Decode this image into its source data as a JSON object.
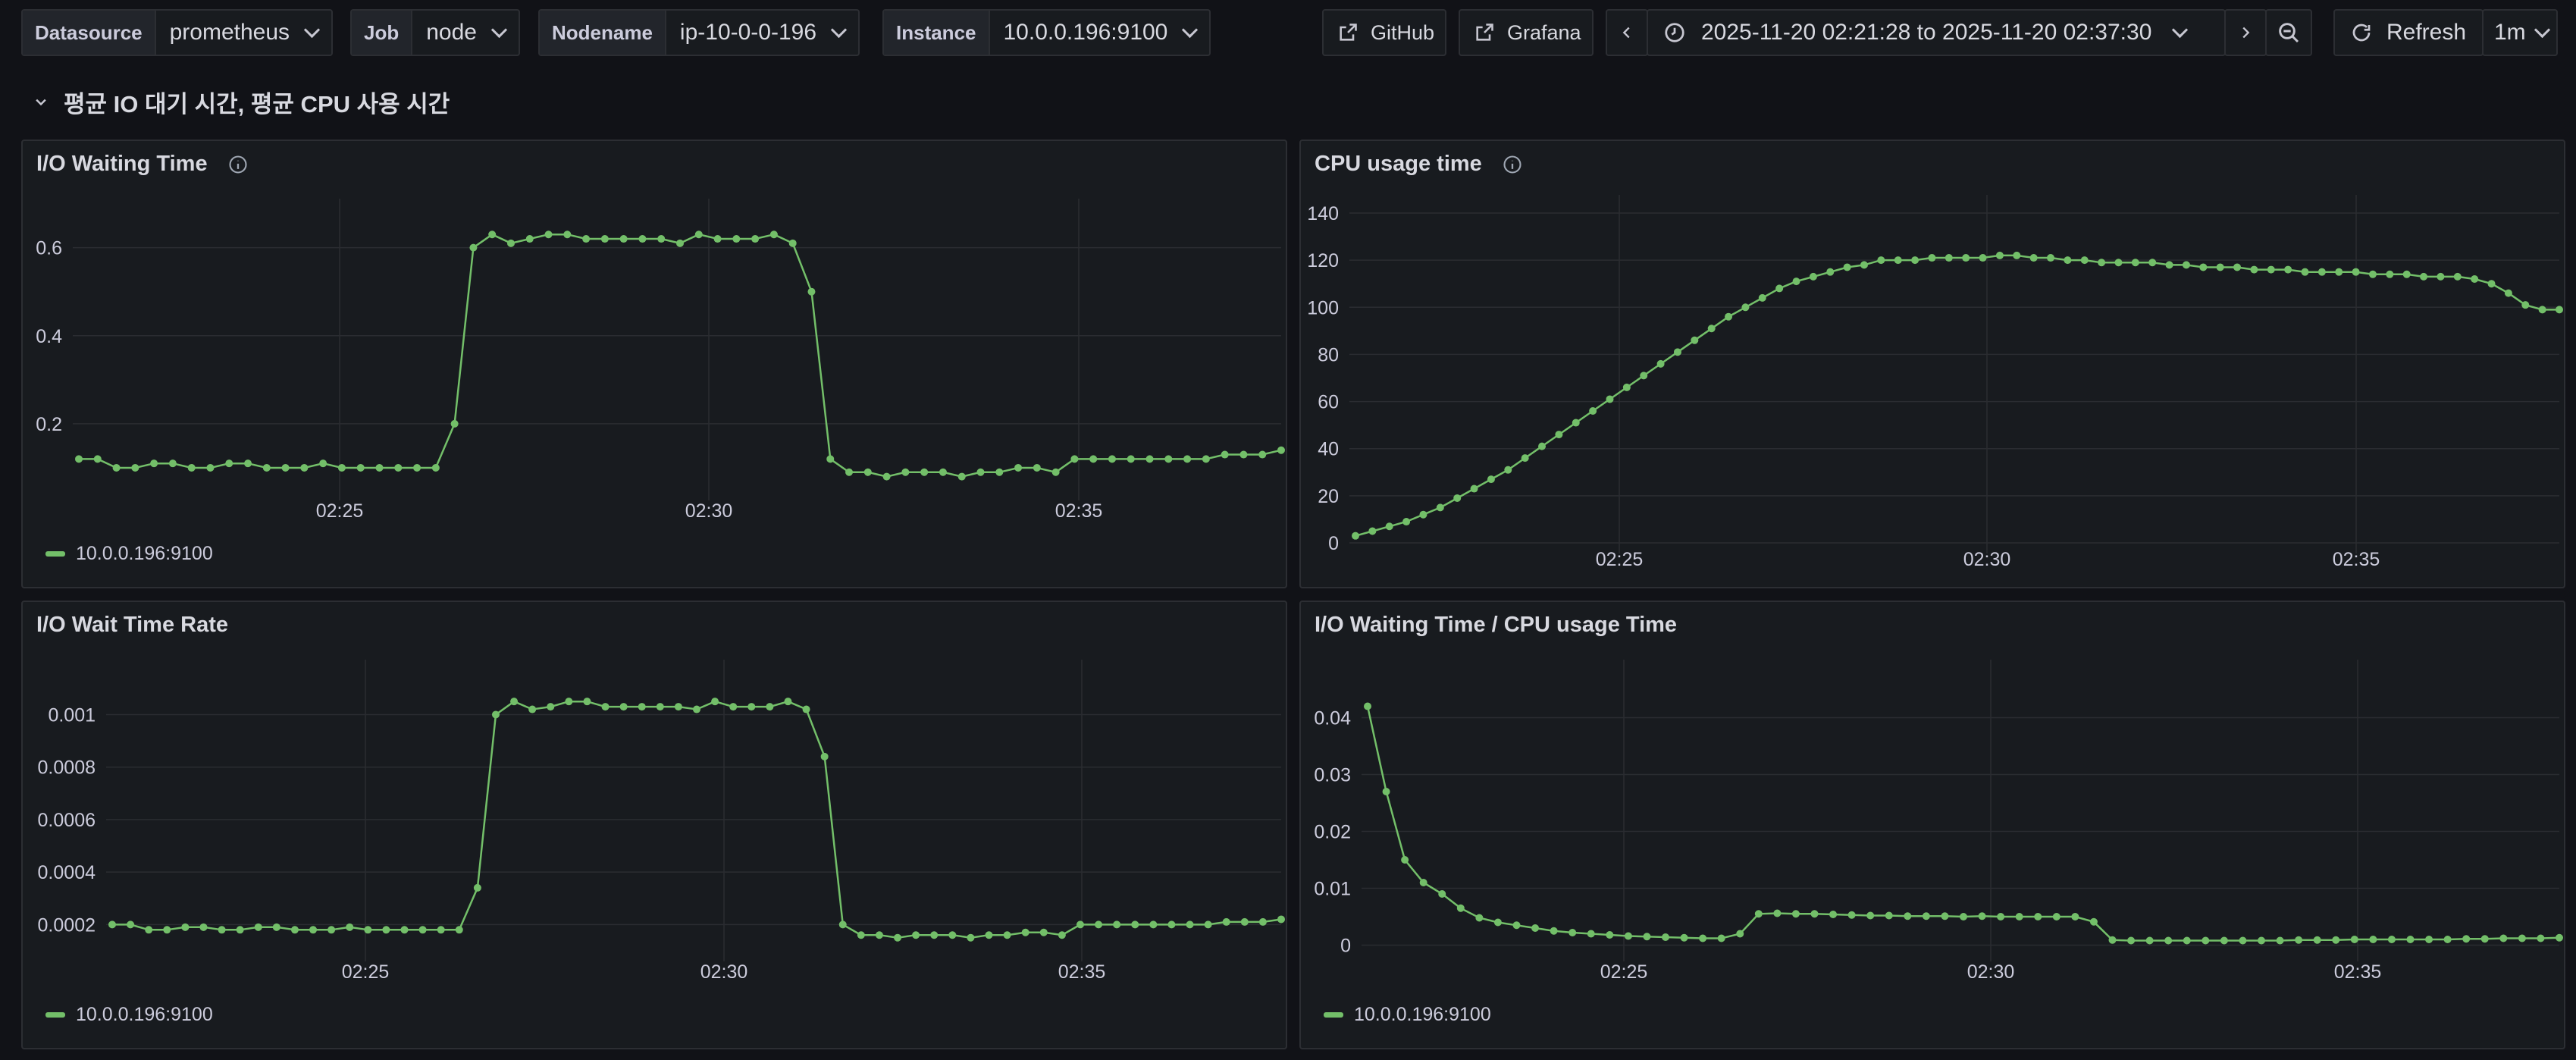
{
  "variables": [
    {
      "label": "Datasource",
      "value": "prometheus"
    },
    {
      "label": "Job",
      "value": "node"
    },
    {
      "label": "Nodename",
      "value": "ip-10-0-0-196"
    },
    {
      "label": "Instance",
      "value": "10.0.0.196:9100"
    }
  ],
  "toolbar": {
    "github_label": "GitHub",
    "grafana_label": "Grafana",
    "time_range": "2025-11-20 02:21:28 to 2025-11-20 02:37:30",
    "refresh_label": "Refresh",
    "refresh_interval": "1m"
  },
  "row_title": "평균 IO 대기 시간, 평균 CPU 사용 시간",
  "colors": {
    "series": "#73bf69",
    "background": "#111217",
    "panel": "#181b1f"
  },
  "panels": [
    {
      "title": "I/O Waiting Time",
      "has_info_icon": true,
      "legend": "10.0.0.196:9100",
      "chart_data": {
        "type": "line",
        "x_ticks": [
          "02:25",
          "02:30",
          "02:35"
        ],
        "y_ticks": [
          "0.2",
          "0.4",
          "0.6"
        ],
        "y_tick_values": [
          0.2,
          0.4,
          0.6
        ],
        "ylim": [
          0.05,
          0.67
        ],
        "series": [
          {
            "name": "10.0.0.196:9100",
            "values": [
              0.12,
              0.12,
              0.1,
              0.1,
              0.11,
              0.11,
              0.1,
              0.1,
              0.11,
              0.11,
              0.1,
              0.1,
              0.1,
              0.11,
              0.1,
              0.1,
              0.1,
              0.1,
              0.1,
              0.1,
              0.2,
              0.6,
              0.63,
              0.61,
              0.62,
              0.63,
              0.63,
              0.62,
              0.62,
              0.62,
              0.62,
              0.62,
              0.61,
              0.63,
              0.62,
              0.62,
              0.62,
              0.63,
              0.61,
              0.5,
              0.12,
              0.09,
              0.09,
              0.08,
              0.09,
              0.09,
              0.09,
              0.08,
              0.09,
              0.09,
              0.1,
              0.1,
              0.09,
              0.12,
              0.12,
              0.12,
              0.12,
              0.12,
              0.12,
              0.12,
              0.12,
              0.13,
              0.13,
              0.13,
              0.14
            ]
          }
        ]
      }
    },
    {
      "title": "CPU usage time",
      "has_info_icon": true,
      "legend": "",
      "chart_data": {
        "type": "line",
        "x_ticks": [
          "02:25",
          "02:30",
          "02:35"
        ],
        "y_ticks": [
          "0",
          "20",
          "40",
          "60",
          "80",
          "100",
          "120",
          "140"
        ],
        "y_tick_values": [
          0,
          20,
          40,
          60,
          80,
          100,
          120,
          140
        ],
        "ylim": [
          0,
          140
        ],
        "series": [
          {
            "name": "10.0.0.196:9100",
            "values": [
              3,
              5,
              7,
              9,
              12,
              15,
              19,
              23,
              27,
              31,
              36,
              41,
              46,
              51,
              56,
              61,
              66,
              71,
              76,
              81,
              86,
              91,
              96,
              100,
              104,
              108,
              111,
              113,
              115,
              117,
              118,
              120,
              120,
              120,
              121,
              121,
              121,
              121,
              122,
              122,
              121,
              121,
              120,
              120,
              119,
              119,
              119,
              119,
              118,
              118,
              117,
              117,
              117,
              116,
              116,
              116,
              115,
              115,
              115,
              115,
              114,
              114,
              114,
              113,
              113,
              113,
              112,
              110,
              106,
              101,
              99,
              99
            ]
          }
        ]
      }
    },
    {
      "title": "I/O Wait Time Rate",
      "has_info_icon": false,
      "legend": "10.0.0.196:9100",
      "chart_data": {
        "type": "line",
        "x_ticks": [
          "02:25",
          "02:30",
          "02:35"
        ],
        "y_ticks": [
          "0.0002",
          "0.0004",
          "0.0006",
          "0.0008",
          "0.001"
        ],
        "y_tick_values": [
          0.0002,
          0.0004,
          0.0006,
          0.0008,
          0.001
        ],
        "ylim": [
          0.0001,
          0.00114
        ],
        "series": [
          {
            "name": "10.0.0.196:9100",
            "values": [
              0.0002,
              0.0002,
              0.00018,
              0.00018,
              0.00019,
              0.00019,
              0.00018,
              0.00018,
              0.00019,
              0.00019,
              0.00018,
              0.00018,
              0.00018,
              0.00019,
              0.00018,
              0.00018,
              0.00018,
              0.00018,
              0.00018,
              0.00018,
              0.00034,
              0.001,
              0.00105,
              0.00102,
              0.00103,
              0.00105,
              0.00105,
              0.00103,
              0.00103,
              0.00103,
              0.00103,
              0.00103,
              0.00102,
              0.00105,
              0.00103,
              0.00103,
              0.00103,
              0.00105,
              0.00102,
              0.00084,
              0.0002,
              0.00016,
              0.00016,
              0.00015,
              0.00016,
              0.00016,
              0.00016,
              0.00015,
              0.00016,
              0.00016,
              0.00017,
              0.00017,
              0.00016,
              0.0002,
              0.0002,
              0.0002,
              0.0002,
              0.0002,
              0.0002,
              0.0002,
              0.0002,
              0.00021,
              0.00021,
              0.00021,
              0.00022
            ]
          }
        ]
      }
    },
    {
      "title": "I/O Waiting Time / CPU usage Time",
      "has_info_icon": false,
      "legend": "10.0.0.196:9100",
      "chart_data": {
        "type": "line",
        "x_ticks": [
          "02:25",
          "02:30",
          "02:35"
        ],
        "y_ticks": [
          "0",
          "0.01",
          "0.02",
          "0.03",
          "0.04"
        ],
        "y_tick_values": [
          0,
          0.01,
          0.02,
          0.03,
          0.04
        ],
        "ylim": [
          -0.001,
          0.047
        ],
        "series": [
          {
            "name": "10.0.0.196:9100",
            "values": [
              0.042,
              0.027,
              0.015,
              0.011,
              0.009,
              0.0065,
              0.0048,
              0.004,
              0.0035,
              0.003,
              0.0025,
              0.0022,
              0.002,
              0.0018,
              0.0016,
              0.0015,
              0.0014,
              0.0013,
              0.0012,
              0.0012,
              0.002,
              0.0055,
              0.0056,
              0.0055,
              0.0055,
              0.0054,
              0.0053,
              0.0052,
              0.0052,
              0.0051,
              0.0051,
              0.0051,
              0.005,
              0.0051,
              0.005,
              0.005,
              0.005,
              0.005,
              0.005,
              0.0041,
              0.0009,
              0.0008,
              0.0008,
              0.0008,
              0.0008,
              0.0008,
              0.0008,
              0.0008,
              0.0008,
              0.0008,
              0.0009,
              0.0009,
              0.0009,
              0.001,
              0.001,
              0.001,
              0.001,
              0.001,
              0.001,
              0.0011,
              0.0011,
              0.0012,
              0.0012,
              0.0012,
              0.0013
            ]
          }
        ]
      }
    }
  ]
}
